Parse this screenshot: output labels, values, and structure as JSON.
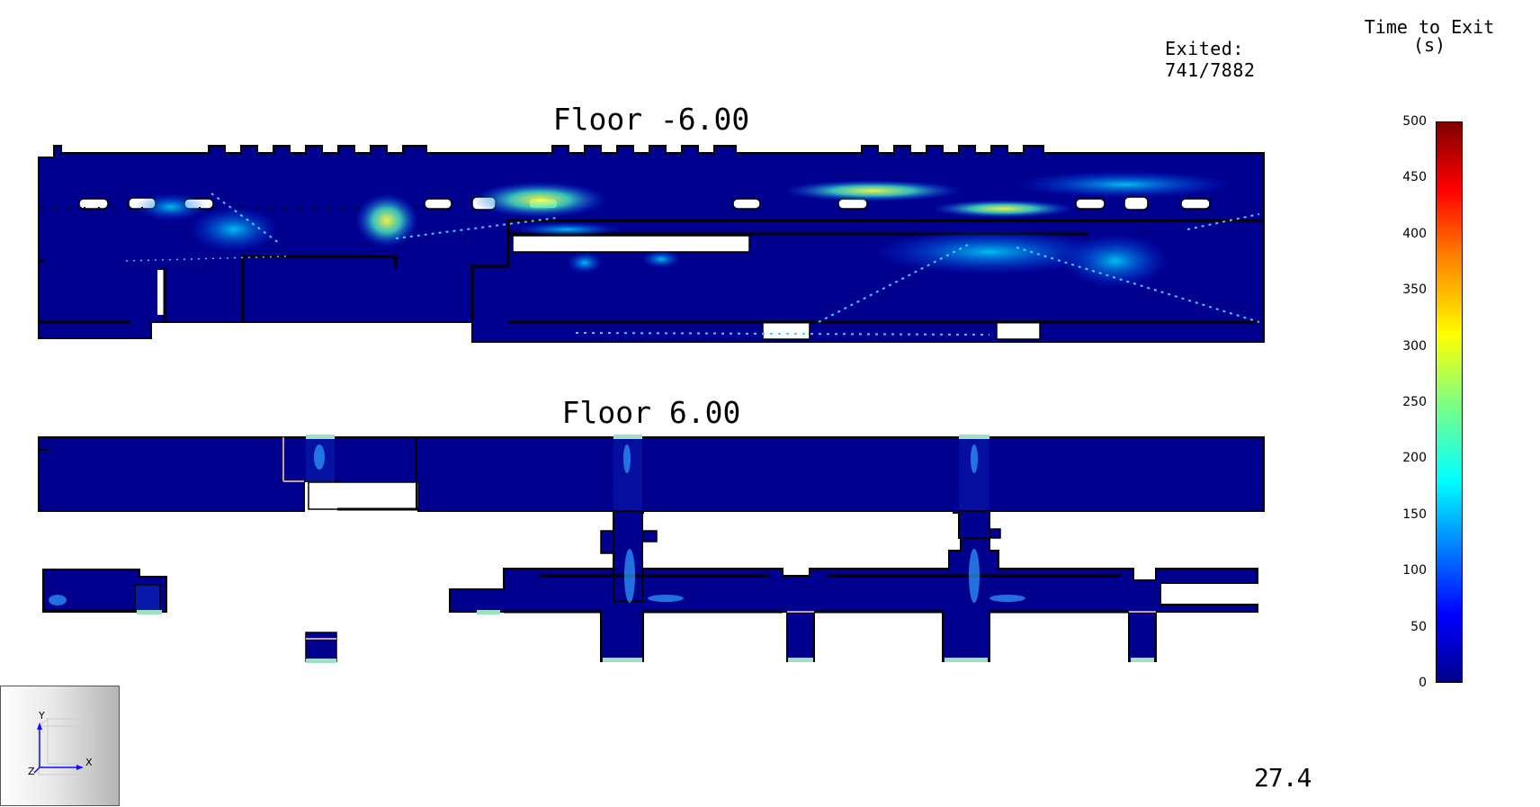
{
  "hud": {
    "exited_label": "Exited:",
    "exited_value": "741/7882",
    "sim_time": "27.4"
  },
  "legend": {
    "title_line1": "Time to Exit",
    "title_line2": "(s)",
    "ticks": [
      "500",
      "450",
      "400",
      "350",
      "300",
      "250",
      "200",
      "150",
      "100",
      "50",
      "0"
    ],
    "min": 0,
    "max": 500,
    "colormap": [
      "#00008b",
      "#0000ff",
      "#0080ff",
      "#00ffff",
      "#80ff80",
      "#ffff00",
      "#ff8000",
      "#ff0000",
      "#800000"
    ]
  },
  "floors": [
    {
      "id": "floor-lower",
      "title": "Floor -6.00"
    },
    {
      "id": "floor-upper",
      "title": "Floor 6.00"
    }
  ],
  "axes": {
    "y": "Y",
    "x": "X",
    "z": "Z"
  },
  "colors": {
    "floor_fill": "#00008f",
    "wall": "#000000",
    "exit": "#9fe0c0",
    "door": "#c8a090"
  }
}
